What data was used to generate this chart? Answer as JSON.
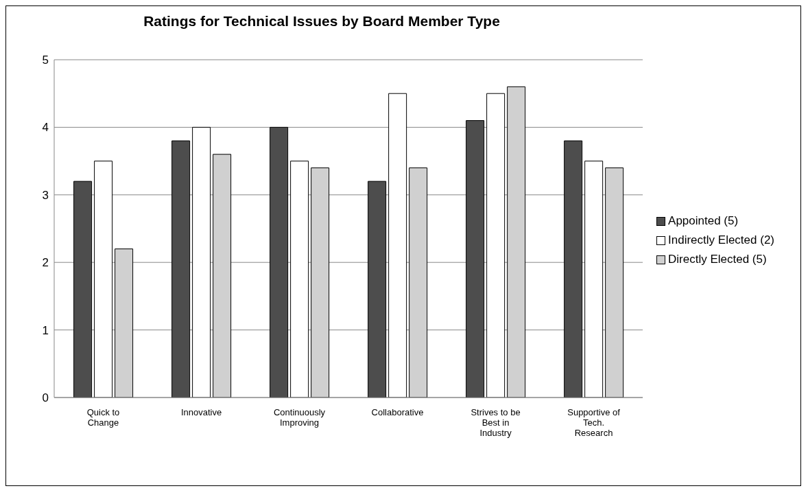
{
  "chart_data": {
    "type": "bar",
    "title": "Ratings for Technical Issues by Board Member Type",
    "categories": [
      "Quick to Change",
      "Innovative",
      "Continuously Improving",
      "Collaborative",
      "Strives to be Best in Industry",
      "Supportive of Tech. Research"
    ],
    "series": [
      {
        "name": "Appointed (5)",
        "color": "#4d4d4d",
        "values": [
          3.2,
          3.8,
          4.0,
          3.2,
          4.1,
          3.8
        ]
      },
      {
        "name": "Indirectly Elected (2)",
        "color": "#ffffff",
        "values": [
          3.5,
          4.0,
          3.5,
          4.5,
          4.5,
          3.5
        ]
      },
      {
        "name": "Directly Elected (5)",
        "color": "#d0d0d0",
        "values": [
          2.2,
          3.6,
          3.4,
          3.4,
          4.6,
          3.4
        ]
      }
    ],
    "ylim": [
      0,
      5
    ],
    "yticks": [
      0,
      1,
      2,
      3,
      4,
      5
    ],
    "grid": "y",
    "legend": "right"
  }
}
